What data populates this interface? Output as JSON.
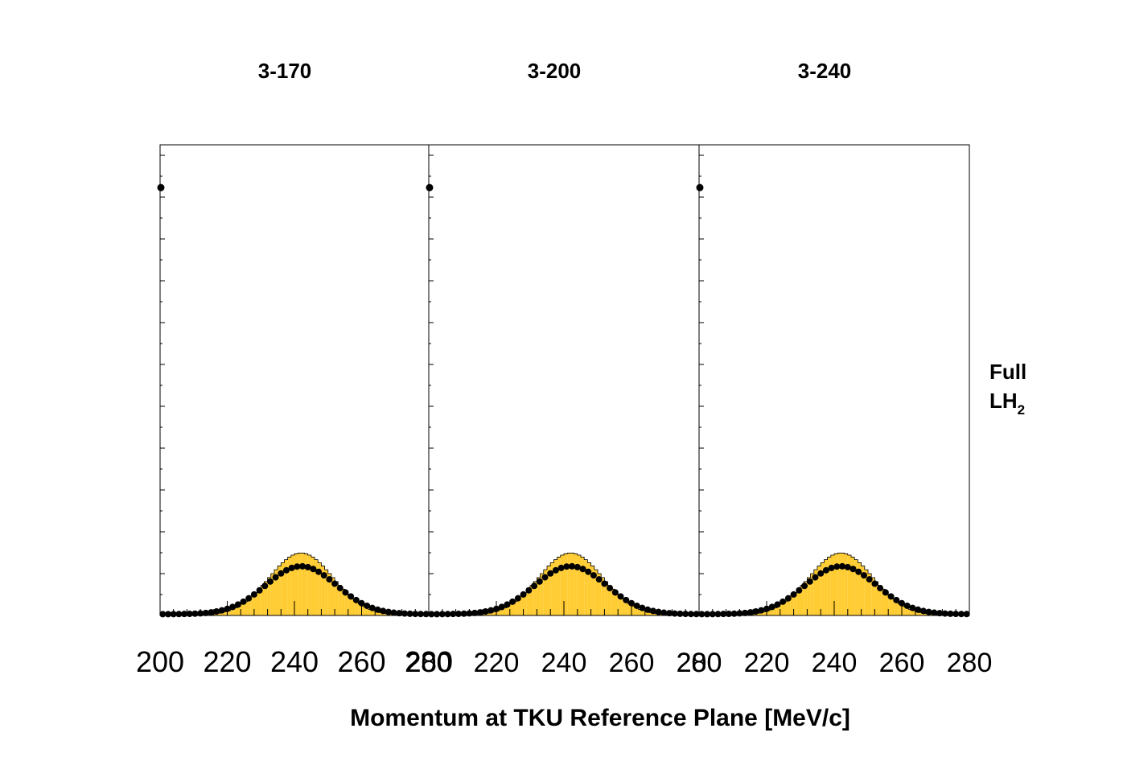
{
  "chart_data": [
    {
      "type": "histogram",
      "title": "3-170",
      "xlabel": "",
      "ylabel": "",
      "xlim": [
        200,
        280
      ],
      "x_ticks": [
        "200",
        "220",
        "240",
        "260",
        "280"
      ],
      "series": [
        {
          "type": "bar-histogram",
          "fill": "#ffcc33",
          "edge": "#000000",
          "mean": 242,
          "sigma": 9.5,
          "peak": 0.146
        },
        {
          "type": "points",
          "color": "#000000",
          "mean": 242,
          "sigma": 10.5,
          "peak": 0.112,
          "first_point_value": 1.0
        }
      ]
    },
    {
      "type": "histogram",
      "title": "3-200",
      "xlabel": "",
      "ylabel": "",
      "xlim": [
        200,
        280
      ],
      "x_ticks": [
        "200",
        "220",
        "240",
        "260",
        "280"
      ],
      "series": [
        {
          "type": "bar-histogram",
          "fill": "#ffcc33",
          "edge": "#000000",
          "mean": 242,
          "sigma": 9.5,
          "peak": 0.146
        },
        {
          "type": "points",
          "color": "#000000",
          "mean": 242,
          "sigma": 10.5,
          "peak": 0.112,
          "first_point_value": 1.0
        }
      ]
    },
    {
      "type": "histogram",
      "title": "3-240",
      "xlabel": "",
      "ylabel": "",
      "xlim": [
        200,
        280
      ],
      "x_ticks": [
        "200",
        "220",
        "240",
        "260",
        "280"
      ],
      "series": [
        {
          "type": "bar-histogram",
          "fill": "#ffcc33",
          "edge": "#000000",
          "mean": 242,
          "sigma": 9.5,
          "peak": 0.146
        },
        {
          "type": "points",
          "color": "#000000",
          "mean": 242,
          "sigma": 10.5,
          "peak": 0.112,
          "first_point_value": 1.0
        }
      ]
    }
  ],
  "shared_xlabel": "Momentum at TKU Reference Plane [MeV/c]",
  "side_label": {
    "line1": "Full",
    "line2_main": "LH",
    "line2_sub": "2"
  }
}
